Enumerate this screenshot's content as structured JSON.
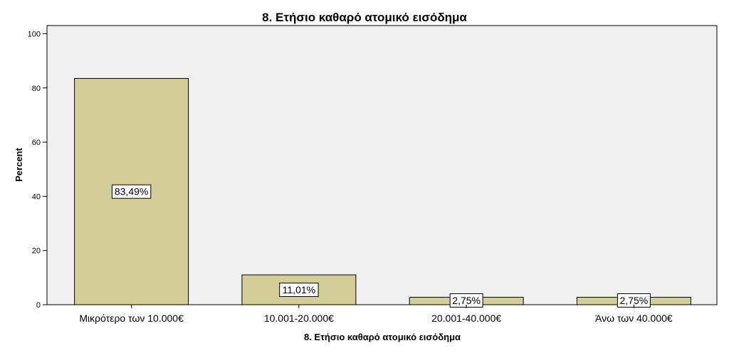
{
  "chart_data": {
    "type": "bar",
    "title": "8. Ετήσιο καθαρό ατομικό εισόδημα",
    "xlabel": "8. Ετήσιο καθαρό ατομικό εισόδημα",
    "ylabel": "Percent",
    "categories": [
      "Μικρότερο των 10.000€",
      "10.001-20.000€",
      "20.001-40.000€",
      "Άνω των 40.000€"
    ],
    "values": [
      83.49,
      11.01,
      2.75,
      2.75
    ],
    "data_labels": [
      "83,49%",
      "11,01%",
      "2,75%",
      "2,75%"
    ],
    "ylim": [
      0,
      103
    ],
    "yticks": [
      0,
      20,
      40,
      60,
      80,
      100
    ],
    "grid": false,
    "colors": {
      "bar": "#d3ce98",
      "plot_background": "#f0f0f0"
    }
  }
}
